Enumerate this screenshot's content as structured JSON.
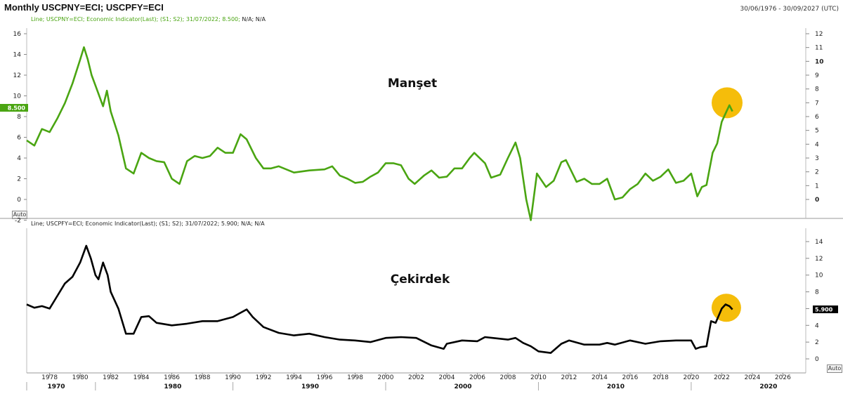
{
  "header": {
    "title": "Monthly USCPNY=ECI; USCPFY=ECI",
    "date_range": "30/06/1976 - 30/09/2027 (UTC)"
  },
  "panes": {
    "top": {
      "legend_prefix": "Line; USCPNY=ECI; Economic Indicator(Last); (S1; S2); 31/07/2022; 8.500;",
      "legend_suffix": "N/A; N/A",
      "annotation": "Manşet",
      "last_value_label": "8.500",
      "auto_label": "Auto"
    },
    "bottom": {
      "legend": "Line; USCPFY=ECI; Economic Indicator(Last); (S1; S2); 31/07/2022; 5.900; N/A; N/A",
      "annotation": "Çekirdek",
      "last_value_label": "5.900",
      "auto_label": "Auto"
    }
  },
  "colors": {
    "headline_line": "#4aa512",
    "core_line": "#000000",
    "highlight_circle": "#f5bd0a",
    "axis": "#999999",
    "pane_divider": "#9a9a9a"
  },
  "chart_data": [
    {
      "type": "line",
      "name": "headline",
      "series": [
        {
          "name": "USCPNY=ECI",
          "x": [
            1976.5,
            1977.0,
            1977.5,
            1978.0,
            1978.5,
            1979.0,
            1979.5,
            1980.0,
            1980.25,
            1980.5,
            1980.75,
            1981.0,
            1981.5,
            1981.75,
            1982.0,
            1982.5,
            1983.0,
            1983.5,
            1984.0,
            1984.5,
            1985.0,
            1985.5,
            1986.0,
            1986.5,
            1987.0,
            1987.5,
            1988.0,
            1988.5,
            1989.0,
            1989.5,
            1990.0,
            1990.5,
            1990.9,
            1991.5,
            1992.0,
            1992.5,
            1993.0,
            1994.0,
            1995.0,
            1996.0,
            1996.5,
            1997.0,
            1997.5,
            1998.0,
            1998.5,
            1999.0,
            1999.5,
            2000.0,
            2000.5,
            2001.0,
            2001.5,
            2001.9,
            2002.5,
            2003.0,
            2003.5,
            2004.0,
            2004.5,
            2005.0,
            2005.5,
            2005.8,
            2006.5,
            2006.9,
            2007.5,
            2008.0,
            2008.5,
            2008.8,
            2009.2,
            2009.5,
            2009.9,
            2010.5,
            2011.0,
            2011.5,
            2011.8,
            2012.5,
            2013.0,
            2013.5,
            2014.0,
            2014.5,
            2015.0,
            2015.5,
            2016.0,
            2016.5,
            2017.0,
            2017.5,
            2018.0,
            2018.5,
            2019.0,
            2019.5,
            2020.0,
            2020.4,
            2020.7,
            2021.0,
            2021.4,
            2021.7,
            2022.0,
            2022.25,
            2022.5,
            2022.7
          ],
          "y": [
            5.7,
            5.2,
            6.8,
            6.5,
            7.8,
            9.3,
            11.2,
            13.5,
            14.7,
            13.5,
            12.0,
            11.0,
            9.0,
            10.5,
            8.5,
            6.2,
            3.0,
            2.5,
            4.5,
            4.0,
            3.7,
            3.6,
            2.0,
            1.5,
            3.7,
            4.2,
            4.0,
            4.2,
            5.0,
            4.5,
            4.5,
            6.3,
            5.8,
            4.0,
            3.0,
            3.0,
            3.2,
            2.6,
            2.8,
            2.9,
            3.2,
            2.3,
            2.0,
            1.6,
            1.7,
            2.2,
            2.6,
            3.5,
            3.5,
            3.3,
            2.0,
            1.5,
            2.3,
            2.8,
            2.1,
            2.2,
            3.0,
            3.0,
            4.0,
            4.5,
            3.5,
            2.1,
            2.4,
            4.0,
            5.5,
            4.0,
            0.0,
            -2.0,
            2.5,
            1.2,
            1.8,
            3.6,
            3.8,
            1.7,
            2.0,
            1.5,
            1.5,
            2.0,
            0.0,
            0.2,
            1.0,
            1.5,
            2.5,
            1.8,
            2.2,
            2.9,
            1.6,
            1.8,
            2.5,
            0.3,
            1.2,
            1.4,
            4.5,
            5.4,
            7.5,
            8.3,
            9.1,
            8.5
          ]
        }
      ],
      "ylim_left": [
        -2,
        16
      ],
      "ylim_right": [
        0,
        12
      ]
    },
    {
      "type": "line",
      "name": "core",
      "series": [
        {
          "name": "USCPFY=ECI",
          "x": [
            1976.5,
            1977.0,
            1977.5,
            1978.0,
            1978.5,
            1979.0,
            1979.5,
            1980.0,
            1980.4,
            1980.7,
            1981.0,
            1981.2,
            1981.5,
            1981.8,
            1982.0,
            1982.5,
            1983.0,
            1983.5,
            1984.0,
            1984.5,
            1985.0,
            1986.0,
            1987.0,
            1988.0,
            1989.0,
            1990.0,
            1990.5,
            1990.9,
            1991.3,
            1992.0,
            1993.0,
            1994.0,
            1995.0,
            1996.0,
            1997.0,
            1998.0,
            1999.0,
            2000.0,
            2001.0,
            2002.0,
            2003.0,
            2003.8,
            2004.0,
            2005.0,
            2006.0,
            2006.5,
            2007.0,
            2008.0,
            2008.5,
            2009.0,
            2009.5,
            2010.0,
            2010.8,
            2011.5,
            2012.0,
            2013.0,
            2014.0,
            2014.5,
            2015.0,
            2016.0,
            2017.0,
            2018.0,
            2019.0,
            2020.0,
            2020.3,
            2020.6,
            2021.0,
            2021.3,
            2021.6,
            2022.0,
            2022.25,
            2022.5,
            2022.7
          ],
          "y": [
            6.5,
            6.1,
            6.3,
            6.0,
            7.5,
            9.0,
            9.8,
            11.5,
            13.5,
            12.0,
            10.0,
            9.5,
            11.5,
            10.0,
            8.0,
            6.0,
            3.0,
            3.0,
            5.0,
            5.1,
            4.3,
            4.0,
            4.2,
            4.5,
            4.5,
            5.0,
            5.5,
            5.9,
            5.0,
            3.8,
            3.1,
            2.8,
            3.0,
            2.6,
            2.3,
            2.2,
            2.0,
            2.5,
            2.6,
            2.5,
            1.6,
            1.2,
            1.8,
            2.2,
            2.1,
            2.6,
            2.5,
            2.3,
            2.5,
            1.9,
            1.5,
            0.9,
            0.7,
            1.8,
            2.2,
            1.7,
            1.7,
            1.9,
            1.7,
            2.2,
            1.8,
            2.1,
            2.2,
            2.2,
            1.2,
            1.4,
            1.5,
            4.5,
            4.3,
            6.0,
            6.5,
            6.3,
            5.9
          ]
        }
      ],
      "ylim": [
        0,
        14
      ]
    }
  ],
  "axes": {
    "top_left_ticks": [
      "-2",
      "0",
      "2",
      "4",
      "6",
      "8",
      "10",
      "12",
      "14",
      "16"
    ],
    "top_left_values": [
      -2,
      0,
      2,
      4,
      6,
      8,
      10,
      12,
      14,
      16
    ],
    "top_right_ticks": [
      "0",
      "1",
      "2",
      "3",
      "4",
      "5",
      "6",
      "7",
      "8",
      "9",
      "10",
      "11",
      "12"
    ],
    "top_right_values": [
      0,
      1,
      2,
      3,
      4,
      5,
      6,
      7,
      8,
      9,
      10,
      11,
      12
    ],
    "top_right_bold": [
      0,
      10
    ],
    "bottom_right_ticks": [
      "0",
      "2",
      "4",
      "6",
      "8",
      "10",
      "12",
      "14"
    ],
    "bottom_right_values": [
      0,
      2,
      4,
      6,
      8,
      10,
      12,
      14
    ],
    "x_ticks": [
      "1978",
      "1980",
      "1982",
      "1984",
      "1986",
      "1988",
      "1990",
      "1992",
      "1994",
      "1996",
      "1998",
      "2000",
      "2002",
      "2004",
      "2006",
      "2008",
      "2010",
      "2012",
      "2014",
      "2016",
      "2018",
      "2020",
      "2022",
      "2024",
      "2026"
    ],
    "x_tick_values": [
      1978,
      1980,
      1982,
      1984,
      1986,
      1988,
      1990,
      1992,
      1994,
      1996,
      1998,
      2000,
      2002,
      2004,
      2006,
      2008,
      2010,
      2012,
      2014,
      2016,
      2018,
      2020,
      2022,
      2024,
      2026
    ],
    "x_decades": [
      "1970",
      "1980",
      "1990",
      "2000",
      "2010",
      "2020"
    ],
    "x_decade_values": [
      1976.5,
      1981.0,
      1990.0,
      2000.0,
      2010.0,
      2020.0
    ],
    "x_range": [
      1976.5,
      2027.5
    ]
  },
  "highlights": {
    "top": {
      "x": 2022.35,
      "y_right": 7.0
    },
    "bottom": {
      "x": 2022.3,
      "y": 6.1
    }
  }
}
